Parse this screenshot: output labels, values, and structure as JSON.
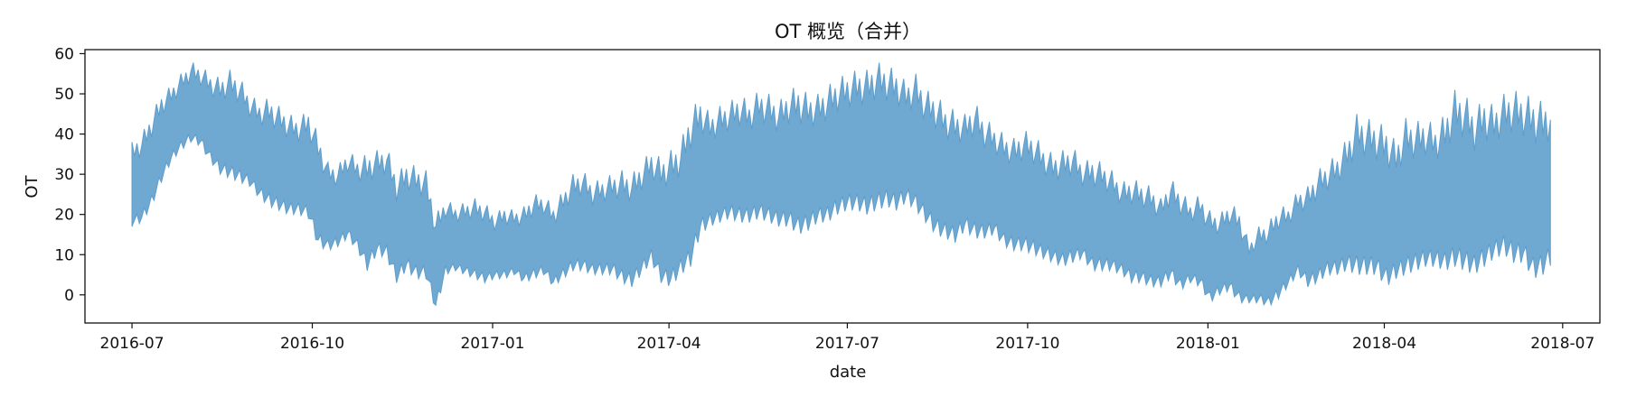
{
  "chart_data": {
    "type": "line",
    "title": "OT 概览（合并）",
    "xlabel": "date",
    "ylabel": "OT",
    "xlim": [
      "2016-06-07",
      "2018-07-20"
    ],
    "ylim": [
      -7,
      61
    ],
    "grid": false,
    "legend": "none",
    "x_ticks": [
      "2016-07",
      "2016-10",
      "2017-01",
      "2017-04",
      "2017-07",
      "2017-10",
      "2018-01",
      "2018-04",
      "2018-07"
    ],
    "y_ticks": [
      0,
      10,
      20,
      30,
      40,
      50,
      60
    ],
    "series": [
      {
        "color": "#5f9ecb",
        "x": [
          "2016-07-01",
          "2016-07-06",
          "2016-07-11",
          "2016-07-16",
          "2016-07-21",
          "2016-07-26",
          "2016-07-31",
          "2016-08-05",
          "2016-08-10",
          "2016-08-15",
          "2016-08-20",
          "2016-08-25",
          "2016-08-30",
          "2016-09-04",
          "2016-09-09",
          "2016-09-14",
          "2016-09-19",
          "2016-09-24",
          "2016-09-29",
          "2016-10-04",
          "2016-10-09",
          "2016-10-14",
          "2016-10-19",
          "2016-10-24",
          "2016-10-29",
          "2016-11-03",
          "2016-11-08",
          "2016-11-13",
          "2016-11-18",
          "2016-11-23",
          "2016-11-28",
          "2016-12-03",
          "2016-12-08",
          "2016-12-13",
          "2016-12-18",
          "2016-12-23",
          "2016-12-28",
          "2017-01-02",
          "2017-01-07",
          "2017-01-12",
          "2017-01-17",
          "2017-01-22",
          "2017-01-27",
          "2017-02-01",
          "2017-02-06",
          "2017-02-11",
          "2017-02-16",
          "2017-02-21",
          "2017-02-26",
          "2017-03-03",
          "2017-03-08",
          "2017-03-13",
          "2017-03-18",
          "2017-03-23",
          "2017-03-28",
          "2017-04-02",
          "2017-04-07",
          "2017-04-12",
          "2017-04-17",
          "2017-04-22",
          "2017-04-27",
          "2017-05-02",
          "2017-05-07",
          "2017-05-12",
          "2017-05-17",
          "2017-05-22",
          "2017-05-27",
          "2017-06-01",
          "2017-06-06",
          "2017-06-11",
          "2017-06-16",
          "2017-06-21",
          "2017-06-26",
          "2017-07-01",
          "2017-07-06",
          "2017-07-11",
          "2017-07-16",
          "2017-07-21",
          "2017-07-26",
          "2017-07-31",
          "2017-08-05",
          "2017-08-10",
          "2017-08-15",
          "2017-08-20",
          "2017-08-25",
          "2017-08-30",
          "2017-09-04",
          "2017-09-09",
          "2017-09-14",
          "2017-09-19",
          "2017-09-24",
          "2017-09-29",
          "2017-10-04",
          "2017-10-09",
          "2017-10-14",
          "2017-10-19",
          "2017-10-24",
          "2017-10-29",
          "2017-11-03",
          "2017-11-08",
          "2017-11-13",
          "2017-11-18",
          "2017-11-23",
          "2017-11-28",
          "2017-12-03",
          "2017-12-08",
          "2017-12-13",
          "2017-12-18",
          "2017-12-23",
          "2017-12-28",
          "2018-01-02",
          "2018-01-07",
          "2018-01-12",
          "2018-01-17",
          "2018-01-22",
          "2018-01-27",
          "2018-02-01",
          "2018-02-06",
          "2018-02-11",
          "2018-02-16",
          "2018-02-21",
          "2018-02-26",
          "2018-03-03",
          "2018-03-08",
          "2018-03-13",
          "2018-03-18",
          "2018-03-23",
          "2018-03-28",
          "2018-04-02",
          "2018-04-07",
          "2018-04-12",
          "2018-04-17",
          "2018-04-22",
          "2018-04-27",
          "2018-05-02",
          "2018-05-07",
          "2018-05-12",
          "2018-05-17",
          "2018-05-22",
          "2018-05-27",
          "2018-06-01",
          "2018-06-06",
          "2018-06-11",
          "2018-06-16",
          "2018-06-21",
          "2018-06-26"
        ],
        "min": [
          17,
          18,
          22,
          28,
          33,
          36,
          38,
          37,
          33,
          30,
          29,
          28,
          27,
          24,
          22,
          21,
          20,
          20,
          19,
          12,
          11,
          12,
          14,
          11,
          6,
          10,
          9,
          3,
          6,
          4,
          4,
          -4,
          5,
          6,
          5,
          4,
          3,
          4,
          4,
          5,
          3,
          4,
          5,
          2,
          4,
          6,
          6,
          5,
          5,
          5,
          3,
          2,
          5,
          8,
          3,
          2,
          5,
          7,
          15,
          17,
          18,
          19,
          18,
          18,
          19,
          18,
          17,
          17,
          15,
          16,
          18,
          18,
          20,
          21,
          21,
          20,
          21,
          22,
          21,
          23,
          21,
          18,
          15,
          14,
          13,
          16,
          14,
          14,
          15,
          12,
          11,
          11,
          10,
          9,
          8,
          7,
          8,
          9,
          6,
          6,
          6,
          5,
          3,
          3,
          2,
          2,
          4,
          1,
          3,
          2,
          -2,
          0,
          1,
          -2,
          -2,
          -2,
          -3,
          -1,
          2,
          5,
          2,
          3,
          5,
          5,
          6,
          5,
          5,
          5,
          2,
          4,
          5,
          6,
          7,
          7,
          6,
          7,
          6,
          5,
          7,
          9,
          10,
          8,
          8,
          4,
          5,
          8
        ],
        "max": [
          38,
          40,
          45,
          50,
          52,
          55,
          58,
          57,
          55,
          54,
          56,
          54,
          50,
          48,
          49,
          47,
          45,
          44,
          46,
          40,
          33,
          32,
          36,
          34,
          35,
          36,
          37,
          30,
          33,
          32,
          31,
          20,
          24,
          22,
          23,
          24,
          23,
          20,
          22,
          21,
          22,
          25,
          25,
          22,
          26,
          30,
          31,
          28,
          29,
          30,
          31,
          30,
          33,
          36,
          34,
          36,
          38,
          46,
          49,
          45,
          47,
          48,
          50,
          48,
          51,
          50,
          48,
          51,
          52,
          50,
          50,
          52,
          54,
          55,
          56,
          56,
          58,
          57,
          56,
          53,
          55,
          51,
          50,
          47,
          46,
          45,
          48,
          44,
          42,
          40,
          39,
          41,
          40,
          37,
          35,
          36,
          37,
          33,
          34,
          33,
          31,
          28,
          29,
          28,
          27,
          24,
          29,
          26,
          23,
          25,
          21,
          20,
          23,
          21,
          13,
          17,
          18,
          22,
          22,
          26,
          27,
          31,
          33,
          35,
          39,
          45,
          44,
          43,
          42,
          38,
          44,
          43,
          44,
          42,
          45,
          51,
          50,
          46,
          49,
          47,
          50,
          51,
          50,
          49,
          48,
          49
        ]
      }
    ]
  }
}
